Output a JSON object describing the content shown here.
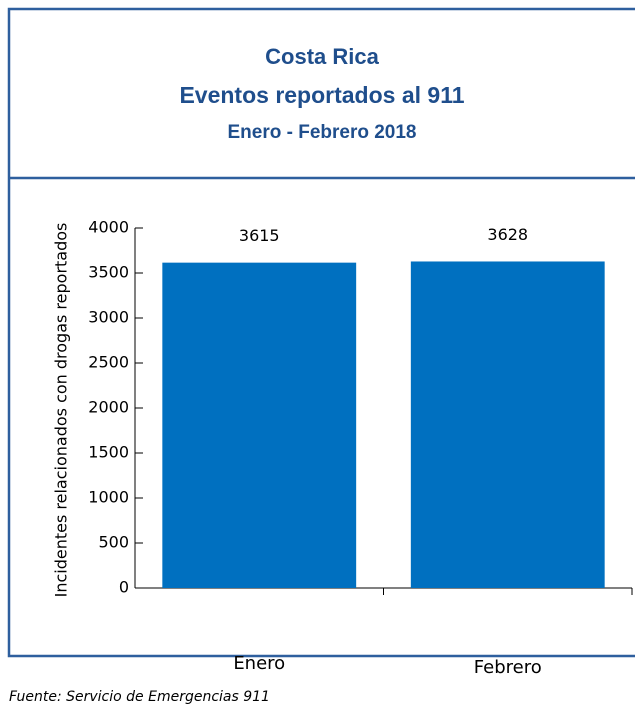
{
  "chart_data": {
    "type": "bar",
    "title": "Costa Rica",
    "subtitle": "Eventos reportados al 911",
    "period": "Enero - Febrero 2018",
    "y_label": "Incidentes relacionados con drogas reportados",
    "categories": [
      "Enero",
      "Febrero"
    ],
    "values": [
      3615,
      3628
    ],
    "color": "#0070c0",
    "ylim": [
      0,
      4000
    ],
    "yticks": [
      0,
      500,
      1000,
      1500,
      2000,
      2500,
      3000,
      3500,
      4000
    ],
    "source": "Fuente: Servicio de Emergencias 911"
  }
}
